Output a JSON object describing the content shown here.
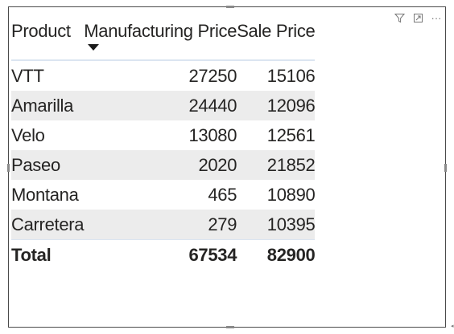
{
  "toolbar": {
    "icons": [
      "filter-icon",
      "focus-mode-icon",
      "more-options-icon"
    ],
    "more_label": "···"
  },
  "table": {
    "headers": {
      "product": "Product",
      "manufacturing_price": "Manufacturing Price",
      "sale_price": "Sale Price"
    },
    "sort": {
      "column": "Manufacturing Price",
      "direction": "descending"
    },
    "rows": [
      {
        "product": "VTT",
        "manufacturing_price": "27250",
        "sale_price": "15106"
      },
      {
        "product": "Amarilla",
        "manufacturing_price": "24440",
        "sale_price": "12096"
      },
      {
        "product": "Velo",
        "manufacturing_price": "13080",
        "sale_price": "12561"
      },
      {
        "product": "Paseo",
        "manufacturing_price": "2020",
        "sale_price": "21852"
      },
      {
        "product": "Montana",
        "manufacturing_price": "465",
        "sale_price": "10890"
      },
      {
        "product": "Carretera",
        "manufacturing_price": "279",
        "sale_price": "10395"
      }
    ],
    "total": {
      "label": "Total",
      "manufacturing_price": "67534",
      "sale_price": "82900"
    }
  },
  "colors": {
    "border": "#4a4a4a",
    "row_band": "#ececec",
    "header_rule": "#dbe5f1",
    "text": "#252423"
  }
}
